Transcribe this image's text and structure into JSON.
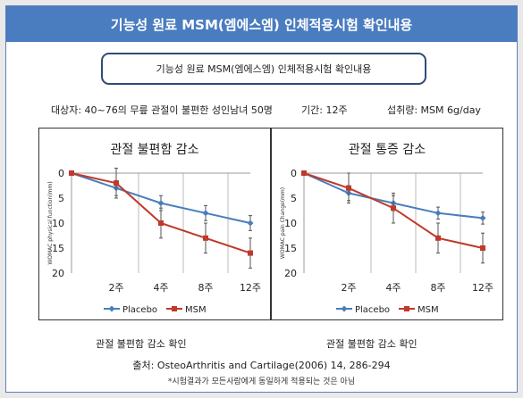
{
  "header": {
    "title": "기능성 원료 MSM(엠에스엠) 인체적용시험 확인내용",
    "subtitle": "기능성 원료 MSM(엠에스엠) 인체적용시험 확인내용"
  },
  "info": {
    "subjects": "대상자: 40~76의 무릎 관절이 불편한 성인남녀 50명",
    "duration": "기간: 12주",
    "intake": "섭취량: MSM 6g/day"
  },
  "colors": {
    "placebo": "#4a7ebb",
    "msm": "#c0392b",
    "title_bar": "#4a7cc0"
  },
  "chart_data": [
    {
      "type": "line",
      "title": "관절 불편함 감소",
      "ylabel": "WOMAC physical function(mm)",
      "xlabel": "",
      "categories": [
        "2주",
        "4주",
        "8주",
        "12주"
      ],
      "x": [
        0,
        1,
        2,
        3,
        4
      ],
      "ylim": [
        0,
        20
      ],
      "y_inverted": true,
      "yticks": [
        0,
        5,
        10,
        15,
        20
      ],
      "legend_position": "bottom",
      "series": [
        {
          "name": "Placebo",
          "values": [
            0,
            3,
            6,
            8,
            10
          ],
          "errors": [
            0,
            1.5,
            1.5,
            1.5,
            1.5
          ]
        },
        {
          "name": "MSM",
          "values": [
            0,
            2,
            10,
            13,
            16
          ],
          "errors": [
            0,
            3,
            3,
            3,
            3
          ]
        }
      ],
      "caption": "관절 불편함 감소 확인"
    },
    {
      "type": "line",
      "title": "관절 통증 감소",
      "ylabel": "WOMAC pain Change(mm)",
      "xlabel": "",
      "categories": [
        "2주",
        "4주",
        "8주",
        "12주"
      ],
      "x": [
        0,
        1,
        2,
        3,
        4
      ],
      "ylim": [
        0,
        20
      ],
      "y_inverted": true,
      "yticks": [
        0,
        5,
        10,
        15,
        20
      ],
      "legend_position": "bottom",
      "series": [
        {
          "name": "Placebo",
          "values": [
            0,
            4,
            6,
            8,
            9
          ],
          "errors": [
            0,
            1.5,
            1.5,
            1.2,
            1.2
          ]
        },
        {
          "name": "MSM",
          "values": [
            0,
            3,
            7,
            13,
            15
          ],
          "errors": [
            0,
            3,
            3,
            3,
            3
          ]
        }
      ],
      "caption": "관절 불편함 감소 확인"
    }
  ],
  "footer": {
    "source": "출처: OsteoArthritis and Cartilage(2006) 14, 286-294",
    "note": "*시험결과가 모든사람에게 동일하게 적용되는 것은 아님"
  }
}
